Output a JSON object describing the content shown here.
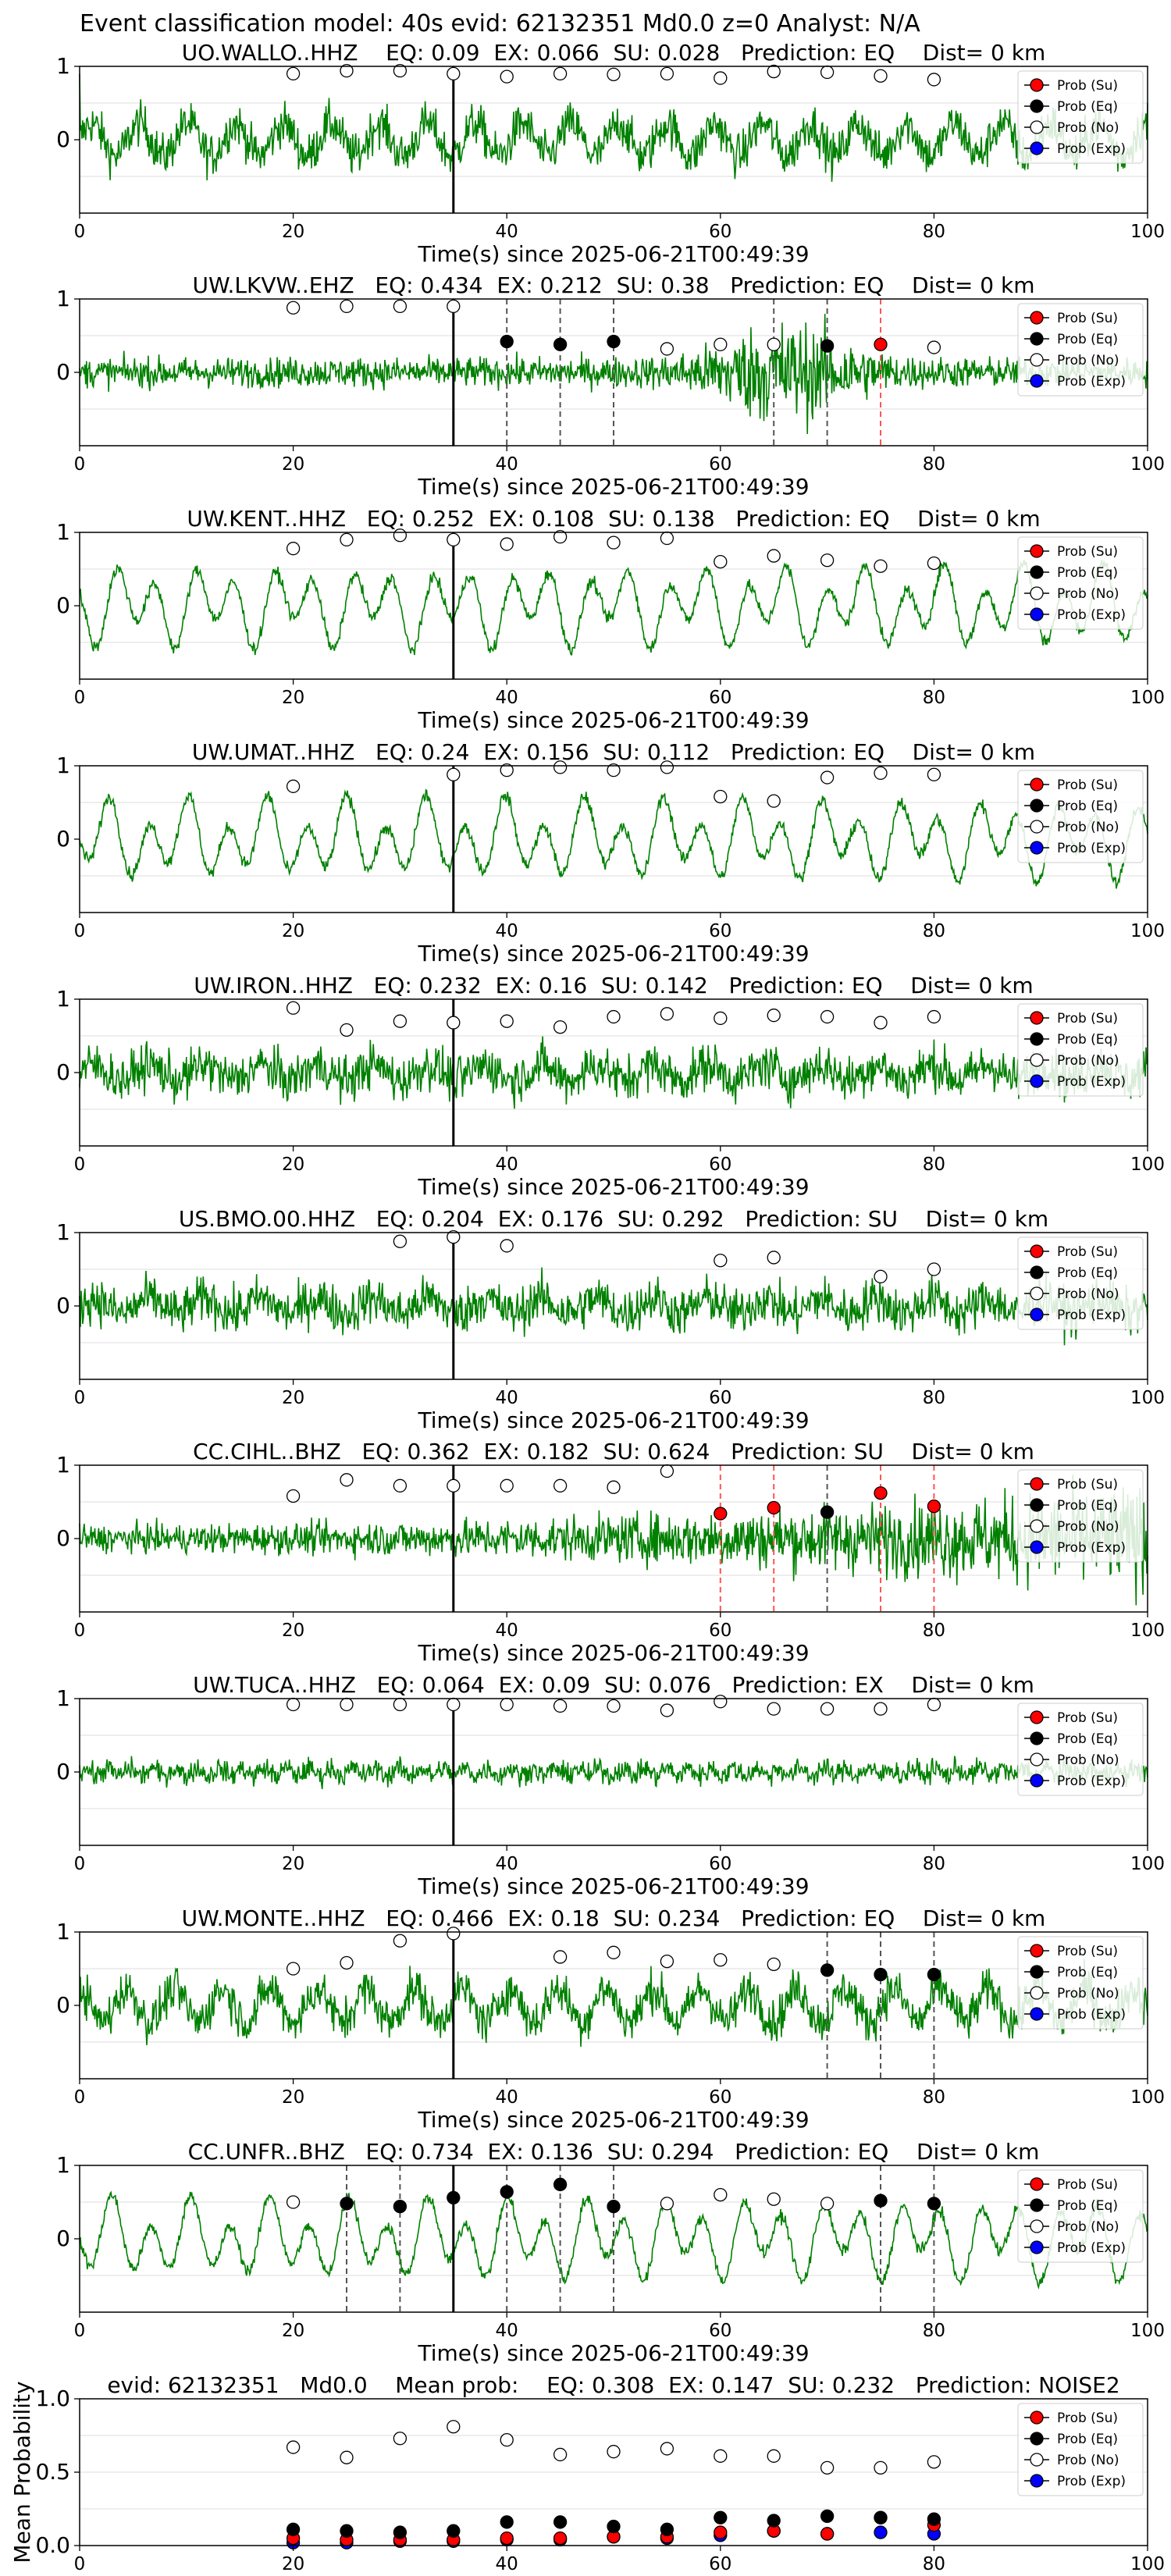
{
  "suptitle": "Event classification model: 40s evid: 62132351 Md0.0 z=0 Analyst: N/A",
  "colors": {
    "waveform": "#008000",
    "su": "#ff0000",
    "eq": "#000000",
    "no": "#ffffff",
    "exp": "#0000ff",
    "eq_line": "#555555",
    "su_line": "#ff5555",
    "pick_line": "#000000"
  },
  "legend_labels": [
    "Prob (Su)",
    "Prob (Eq)",
    "Prob (No)",
    "Prob (Exp)"
  ],
  "chart_data": [
    {
      "type": "line",
      "title": "UO.WALLO..HHZ    EQ: 0.09  EX: 0.066  SU: 0.028   Prediction: EQ    Dist= 0 km",
      "xlabel": "Time(s) since 2025-06-21T00:49:39",
      "xlim": [
        0,
        100
      ],
      "ylim": [
        -1,
        1
      ],
      "xticks": [
        0,
        20,
        40,
        60,
        80,
        100
      ],
      "yticks": [
        0,
        1
      ],
      "legend": "top-right",
      "pick_time": 35,
      "waveform_style": "mixed",
      "no_points": [
        [
          20,
          0.9
        ],
        [
          25,
          0.94
        ],
        [
          30,
          0.94
        ],
        [
          35,
          0.9
        ],
        [
          40,
          0.86
        ],
        [
          45,
          0.9
        ],
        [
          50,
          0.89
        ],
        [
          55,
          0.9
        ],
        [
          60,
          0.84
        ],
        [
          65,
          0.93
        ],
        [
          70,
          0.92
        ],
        [
          75,
          0.87
        ],
        [
          80,
          0.82
        ]
      ],
      "eq_points": [],
      "su_points": [],
      "exp_points": [],
      "eq_lines": [],
      "su_lines": []
    },
    {
      "type": "line",
      "title": "UW.LKVW..EHZ   EQ: 0.434  EX: 0.212  SU: 0.38   Prediction: EQ    Dist= 0 km",
      "xlabel": "Time(s) since 2025-06-21T00:49:39",
      "xlim": [
        0,
        100
      ],
      "ylim": [
        -1,
        1
      ],
      "xticks": [
        0,
        20,
        40,
        60,
        80,
        100
      ],
      "yticks": [
        0,
        1
      ],
      "legend": "top-right",
      "pick_time": 35,
      "waveform_style": "noisy_burst",
      "no_points": [
        [
          20,
          0.88
        ],
        [
          25,
          0.9
        ],
        [
          30,
          0.9
        ],
        [
          35,
          0.9
        ],
        [
          55,
          0.32
        ],
        [
          60,
          0.38
        ],
        [
          65,
          0.38
        ],
        [
          80,
          0.34
        ]
      ],
      "eq_points": [
        [
          40,
          0.42
        ],
        [
          45,
          0.38
        ],
        [
          50,
          0.42
        ],
        [
          70,
          0.36
        ]
      ],
      "su_points": [
        [
          75,
          0.38
        ]
      ],
      "exp_points": [],
      "eq_lines": [
        40,
        45,
        50,
        65,
        70
      ],
      "su_lines": [
        75
      ]
    },
    {
      "type": "line",
      "title": "UW.KENT..HHZ   EQ: 0.252  EX: 0.108  SU: 0.138   Prediction: EQ    Dist= 0 km",
      "xlabel": "Time(s) since 2025-06-21T00:49:39",
      "xlim": [
        0,
        100
      ],
      "ylim": [
        -1,
        1
      ],
      "xticks": [
        0,
        20,
        40,
        60,
        80,
        100
      ],
      "yticks": [
        0,
        1
      ],
      "legend": "top-right",
      "pick_time": 35,
      "waveform_style": "smooth",
      "no_points": [
        [
          20,
          0.78
        ],
        [
          25,
          0.9
        ],
        [
          30,
          0.96
        ],
        [
          35,
          0.9
        ],
        [
          40,
          0.84
        ],
        [
          45,
          0.94
        ],
        [
          50,
          0.86
        ],
        [
          55,
          0.92
        ],
        [
          60,
          0.6
        ],
        [
          65,
          0.68
        ],
        [
          70,
          0.62
        ],
        [
          75,
          0.54
        ],
        [
          80,
          0.58
        ]
      ],
      "eq_points": [],
      "su_points": [],
      "exp_points": [],
      "eq_lines": [],
      "su_lines": []
    },
    {
      "type": "line",
      "title": "UW.UMAT..HHZ   EQ: 0.24  EX: 0.156  SU: 0.112   Prediction: EQ    Dist= 0 km",
      "xlabel": "Time(s) since 2025-06-21T00:49:39",
      "xlim": [
        0,
        100
      ],
      "ylim": [
        -1,
        1
      ],
      "xticks": [
        0,
        20,
        40,
        60,
        80,
        100
      ],
      "yticks": [
        0,
        1
      ],
      "legend": "top-right",
      "pick_time": 35,
      "waveform_style": "smooth",
      "no_points": [
        [
          20,
          0.72
        ],
        [
          35,
          0.88
        ],
        [
          40,
          0.94
        ],
        [
          45,
          0.98
        ],
        [
          50,
          0.94
        ],
        [
          55,
          0.98
        ],
        [
          60,
          0.58
        ],
        [
          65,
          0.52
        ],
        [
          70,
          0.84
        ],
        [
          75,
          0.9
        ],
        [
          80,
          0.88
        ]
      ],
      "eq_points": [],
      "su_points": [],
      "exp_points": [],
      "eq_lines": [],
      "su_lines": []
    },
    {
      "type": "line",
      "title": "UW.IRON..HHZ   EQ: 0.232  EX: 0.16  SU: 0.142   Prediction: EQ    Dist= 0 km",
      "xlabel": "Time(s) since 2025-06-21T00:49:39",
      "xlim": [
        0,
        100
      ],
      "ylim": [
        -1,
        1
      ],
      "xticks": [
        0,
        20,
        40,
        60,
        80,
        100
      ],
      "yticks": [
        0,
        1
      ],
      "legend": "top-right",
      "pick_time": 35,
      "waveform_style": "noisy",
      "no_points": [
        [
          20,
          0.88
        ],
        [
          25,
          0.58
        ],
        [
          30,
          0.7
        ],
        [
          35,
          0.68
        ],
        [
          40,
          0.7
        ],
        [
          45,
          0.62
        ],
        [
          50,
          0.76
        ],
        [
          55,
          0.8
        ],
        [
          60,
          0.74
        ],
        [
          65,
          0.78
        ],
        [
          70,
          0.76
        ],
        [
          75,
          0.68
        ],
        [
          80,
          0.76
        ]
      ],
      "eq_points": [],
      "su_points": [],
      "exp_points": [],
      "eq_lines": [],
      "su_lines": []
    },
    {
      "type": "line",
      "title": "US.BMO.00.HHZ   EQ: 0.204  EX: 0.176  SU: 0.292   Prediction: SU    Dist= 0 km",
      "xlabel": "Time(s) since 2025-06-21T00:49:39",
      "xlim": [
        0,
        100
      ],
      "ylim": [
        -1,
        1
      ],
      "xticks": [
        0,
        20,
        40,
        60,
        80,
        100
      ],
      "yticks": [
        0,
        1
      ],
      "legend": "top-right",
      "pick_time": 35,
      "waveform_style": "noisy",
      "no_points": [
        [
          30,
          0.88
        ],
        [
          35,
          0.94
        ],
        [
          40,
          0.82
        ],
        [
          60,
          0.62
        ],
        [
          65,
          0.66
        ],
        [
          75,
          0.4
        ],
        [
          80,
          0.5
        ]
      ],
      "eq_points": [],
      "su_points": [],
      "exp_points": [],
      "eq_lines": [],
      "su_lines": []
    },
    {
      "type": "line",
      "title": "CC.CIHL..BHZ   EQ: 0.362  EX: 0.182  SU: 0.624   Prediction: SU    Dist= 0 km",
      "xlabel": "Time(s) since 2025-06-21T00:49:39",
      "xlim": [
        0,
        100
      ],
      "ylim": [
        -1,
        1
      ],
      "xticks": [
        0,
        20,
        40,
        60,
        80,
        100
      ],
      "yticks": [
        0,
        1
      ],
      "legend": "top-right",
      "pick_time": 35,
      "waveform_style": "noisy_rising",
      "no_points": [
        [
          20,
          0.58
        ],
        [
          25,
          0.8
        ],
        [
          30,
          0.72
        ],
        [
          35,
          0.72
        ],
        [
          40,
          0.72
        ],
        [
          45,
          0.72
        ],
        [
          50,
          0.7
        ],
        [
          55,
          0.92
        ]
      ],
      "eq_points": [
        [
          70,
          0.36
        ]
      ],
      "su_points": [
        [
          60,
          0.34
        ],
        [
          65,
          0.42
        ],
        [
          75,
          0.62
        ],
        [
          80,
          0.44
        ]
      ],
      "exp_points": [],
      "eq_lines": [
        70
      ],
      "su_lines": [
        60,
        65,
        75,
        80
      ]
    },
    {
      "type": "line",
      "title": "UW.TUCA..HHZ   EQ: 0.064  EX: 0.09  SU: 0.076   Prediction: EX    Dist= 0 km",
      "xlabel": "Time(s) since 2025-06-21T00:49:39",
      "xlim": [
        0,
        100
      ],
      "ylim": [
        -1,
        1
      ],
      "xticks": [
        0,
        20,
        40,
        60,
        80,
        100
      ],
      "yticks": [
        0,
        1
      ],
      "legend": "top-right",
      "pick_time": 35,
      "waveform_style": "small",
      "no_points": [
        [
          20,
          0.92
        ],
        [
          25,
          0.92
        ],
        [
          30,
          0.92
        ],
        [
          35,
          0.92
        ],
        [
          40,
          0.92
        ],
        [
          45,
          0.9
        ],
        [
          50,
          0.9
        ],
        [
          55,
          0.84
        ],
        [
          60,
          0.96
        ],
        [
          65,
          0.86
        ],
        [
          70,
          0.86
        ],
        [
          75,
          0.86
        ],
        [
          80,
          0.92
        ]
      ],
      "eq_points": [],
      "su_points": [],
      "exp_points": [],
      "eq_lines": [],
      "su_lines": []
    },
    {
      "type": "line",
      "title": "UW.MONTE..HHZ   EQ: 0.466  EX: 0.18  SU: 0.234   Prediction: EQ    Dist= 0 km",
      "xlabel": "Time(s) since 2025-06-21T00:49:39",
      "xlim": [
        0,
        100
      ],
      "ylim": [
        -1,
        1
      ],
      "xticks": [
        0,
        20,
        40,
        60,
        80,
        100
      ],
      "yticks": [
        0,
        1
      ],
      "legend": "top-right",
      "pick_time": 35,
      "waveform_style": "mixed",
      "no_points": [
        [
          20,
          0.5
        ],
        [
          25,
          0.58
        ],
        [
          30,
          0.88
        ],
        [
          35,
          0.98
        ],
        [
          45,
          0.66
        ],
        [
          50,
          0.72
        ],
        [
          55,
          0.6
        ],
        [
          60,
          0.62
        ],
        [
          65,
          0.56
        ]
      ],
      "eq_points": [
        [
          70,
          0.48
        ],
        [
          75,
          0.42
        ],
        [
          80,
          0.42
        ]
      ],
      "su_points": [],
      "exp_points": [],
      "eq_lines": [
        70,
        75,
        80
      ],
      "su_lines": []
    },
    {
      "type": "line",
      "title": "CC.UNFR..BHZ   EQ: 0.734  EX: 0.136  SU: 0.294   Prediction: EQ    Dist= 0 km",
      "xlabel": "Time(s) since 2025-06-21T00:49:39",
      "xlim": [
        0,
        100
      ],
      "ylim": [
        -1,
        1
      ],
      "xticks": [
        0,
        20,
        40,
        60,
        80,
        100
      ],
      "yticks": [
        0,
        1
      ],
      "legend": "top-right",
      "pick_time": 35,
      "waveform_style": "smooth",
      "no_points": [
        [
          20,
          0.5
        ],
        [
          55,
          0.48
        ],
        [
          60,
          0.6
        ],
        [
          65,
          0.54
        ],
        [
          70,
          0.48
        ]
      ],
      "eq_points": [
        [
          25,
          0.48
        ],
        [
          30,
          0.44
        ],
        [
          35,
          0.56
        ],
        [
          40,
          0.64
        ],
        [
          45,
          0.74
        ],
        [
          50,
          0.44
        ],
        [
          75,
          0.52
        ],
        [
          80,
          0.48
        ]
      ],
      "su_points": [],
      "exp_points": [],
      "eq_lines": [
        25,
        30,
        40,
        45,
        50,
        75,
        80
      ],
      "su_lines": []
    },
    {
      "type": "scatter",
      "title": "evid: 62132351   Md0.0    Mean prob:    EQ: 0.308  EX: 0.147  SU: 0.232   Prediction: NOISE2",
      "xlabel": "",
      "ylabel": "Mean Probability",
      "xlim": [
        0,
        100
      ],
      "ylim": [
        0,
        1
      ],
      "xticks": [
        0,
        20,
        40,
        60,
        80,
        100
      ],
      "yticks": [
        0,
        0.5,
        1
      ],
      "ytick_labels": [
        "0.0",
        "0.5",
        "1.0"
      ],
      "legend": "top-right",
      "pick_time": null,
      "waveform_style": "none",
      "no_points": [
        [
          20,
          0.67
        ],
        [
          25,
          0.6
        ],
        [
          30,
          0.73
        ],
        [
          35,
          0.81
        ],
        [
          40,
          0.72
        ],
        [
          45,
          0.62
        ],
        [
          50,
          0.64
        ],
        [
          55,
          0.66
        ],
        [
          60,
          0.61
        ],
        [
          65,
          0.61
        ],
        [
          70,
          0.53
        ],
        [
          75,
          0.53
        ],
        [
          80,
          0.57
        ]
      ],
      "eq_points": [
        [
          20,
          0.11
        ],
        [
          25,
          0.1
        ],
        [
          30,
          0.09
        ],
        [
          35,
          0.1
        ],
        [
          40,
          0.16
        ],
        [
          45,
          0.16
        ],
        [
          50,
          0.13
        ],
        [
          55,
          0.11
        ],
        [
          60,
          0.19
        ],
        [
          65,
          0.17
        ],
        [
          70,
          0.2
        ],
        [
          75,
          0.19
        ],
        [
          80,
          0.18
        ]
      ],
      "su_points": [
        [
          20,
          0.05
        ],
        [
          25,
          0.04
        ],
        [
          30,
          0.04
        ],
        [
          35,
          0.04
        ],
        [
          40,
          0.05
        ],
        [
          45,
          0.05
        ],
        [
          50,
          0.06
        ],
        [
          55,
          0.06
        ],
        [
          60,
          0.09
        ],
        [
          65,
          0.1
        ],
        [
          70,
          0.08
        ],
        [
          75,
          0.19
        ],
        [
          80,
          0.14
        ]
      ],
      "exp_points": [
        [
          20,
          0.02
        ],
        [
          25,
          0.02
        ],
        [
          30,
          0.03
        ],
        [
          35,
          0.03
        ],
        [
          40,
          0.04
        ],
        [
          45,
          0.04
        ],
        [
          50,
          0.06
        ],
        [
          55,
          0.05
        ],
        [
          60,
          0.07
        ],
        [
          65,
          0.1
        ],
        [
          70,
          0.08
        ],
        [
          75,
          0.09
        ],
        [
          80,
          0.08
        ]
      ],
      "eq_lines": [],
      "su_lines": []
    }
  ]
}
